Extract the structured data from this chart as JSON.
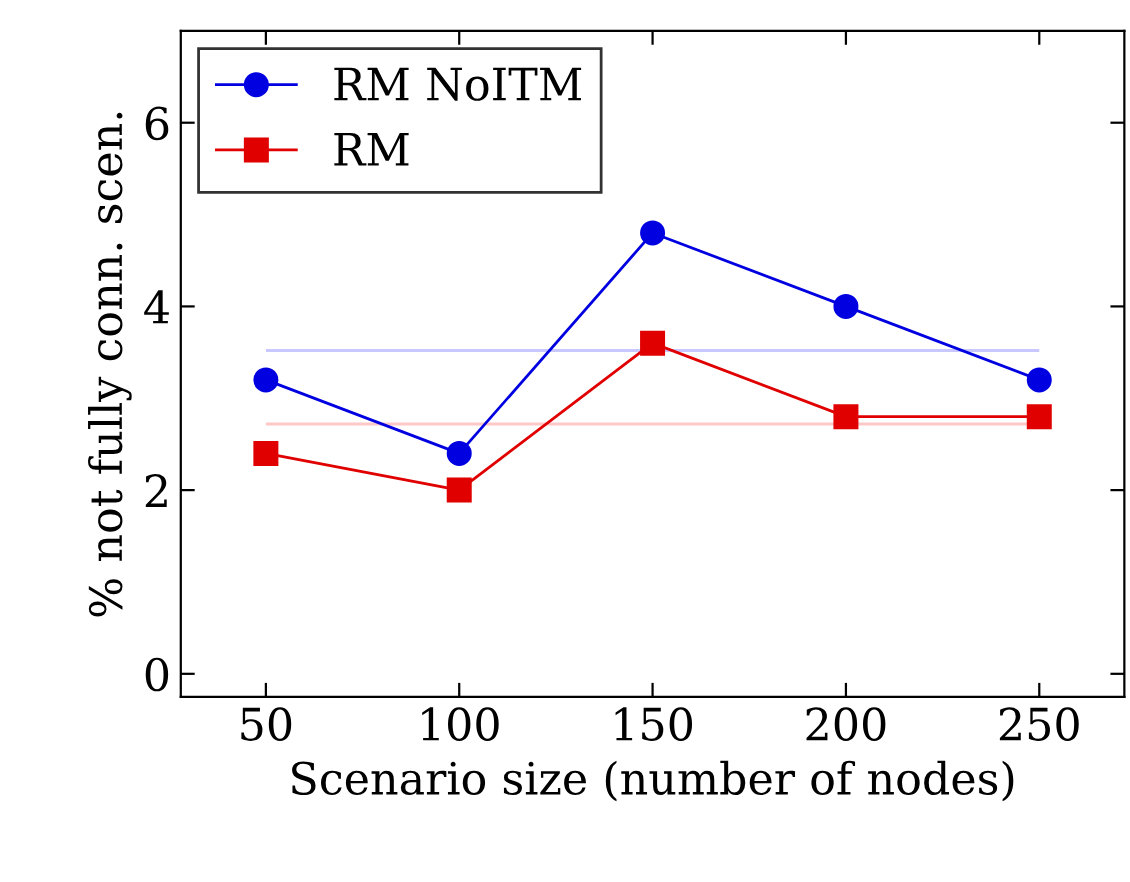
{
  "chart_data": {
    "type": "line",
    "xlabel": "Scenario size (number of nodes)",
    "ylabel": "% not fully conn. scen.",
    "x": [
      50,
      100,
      150,
      200,
      250
    ],
    "series": [
      {
        "name": "RM NoITM",
        "color": "#0000e0",
        "marker": "circle",
        "values": [
          3.2,
          2.4,
          4.8,
          4.0,
          3.2
        ]
      },
      {
        "name": "RM",
        "color": "#e00000",
        "marker": "square",
        "values": [
          2.4,
          2.0,
          3.6,
          2.8,
          2.8
        ]
      }
    ],
    "ref_lines": [
      {
        "axis": "y",
        "value": 3.52,
        "color": "#c8c8ff"
      },
      {
        "axis": "y",
        "value": 2.72,
        "color": "#ffc8c8"
      }
    ],
    "xlim": [
      28,
      272
    ],
    "xticks": [
      50,
      100,
      150,
      200,
      250
    ],
    "ylim": [
      -0.25,
      7
    ],
    "yticks": [
      0,
      2,
      4,
      6
    ],
    "legend": "top left",
    "grid": false,
    "line_style": "solid"
  }
}
